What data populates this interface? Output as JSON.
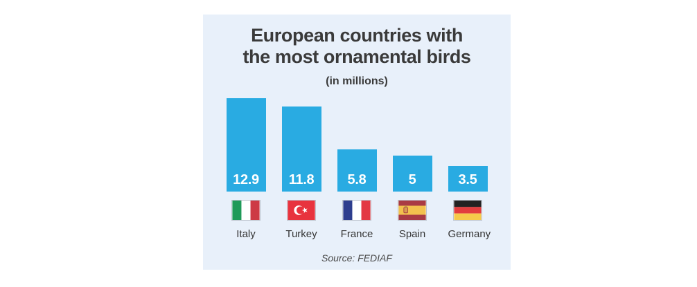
{
  "chart_data": {
    "type": "bar",
    "title": "European countries with the most ornamental birds",
    "title_line1": "European countries with",
    "title_line2": "the most ornamental birds",
    "subtitle": "(in millions)",
    "categories": [
      "Italy",
      "Turkey",
      "France",
      "Spain",
      "Germany"
    ],
    "values": [
      12.9,
      11.8,
      5.8,
      5,
      3.5
    ],
    "value_labels": [
      "12.9",
      "11.8",
      "5.8",
      "5",
      "3.5"
    ],
    "flags": [
      "italy-flag",
      "turkey-flag",
      "france-flag",
      "spain-flag",
      "germany-flag"
    ],
    "source": "Source: FEDIAF",
    "bar_color": "#29abe2",
    "value_label_color": "#ffffff",
    "background_color": "#e8f0fa",
    "title_color": "#3a3a3a",
    "ylim": [
      0,
      13.5
    ],
    "grid": false,
    "legend": "none"
  }
}
